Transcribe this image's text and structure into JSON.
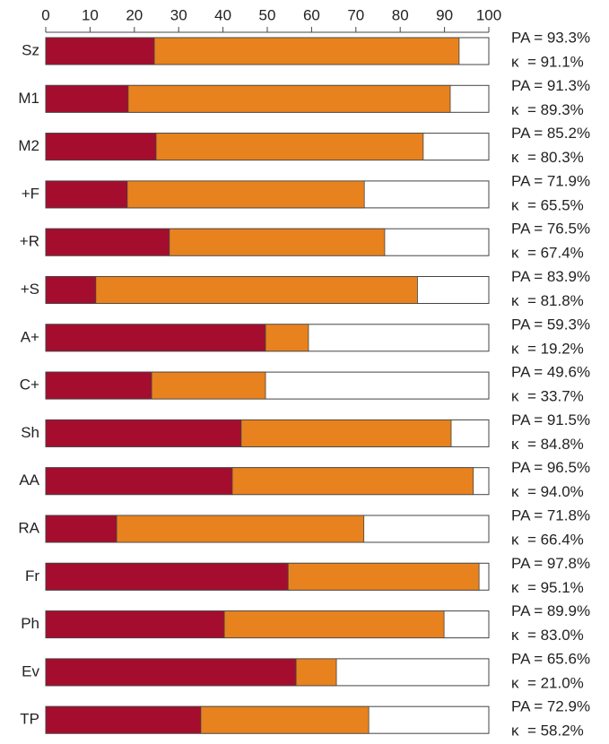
{
  "chart_data": {
    "type": "stacked-barh",
    "categories": [
      "Sz",
      "M1",
      "M2",
      "+F",
      "+R",
      "+S",
      "A+",
      "C+",
      "Sh",
      "AA",
      "RA",
      "Fr",
      "Ph",
      "Ev",
      "TP"
    ],
    "series": [
      {
        "color": "#a50d2e",
        "values": [
          24.5,
          18.6,
          24.9,
          18.4,
          27.9,
          11.3,
          49.6,
          23.9,
          44.1,
          42.1,
          16.0,
          54.7,
          40.3,
          56.5,
          35.0
        ]
      },
      {
        "color": "#e8821e",
        "values": [
          68.8,
          72.7,
          60.3,
          53.5,
          48.6,
          72.6,
          9.7,
          25.7,
          47.4,
          54.4,
          55.8,
          43.1,
          49.6,
          9.1,
          37.9
        ]
      }
    ],
    "xlim": [
      0,
      100
    ],
    "xticks": [
      0,
      10,
      20,
      30,
      40,
      50,
      60,
      70,
      80,
      90,
      100
    ],
    "annotations": [
      [
        "PA = 93.3%",
        "κ  = 91.1%"
      ],
      [
        "PA = 91.3%",
        "κ  = 89.3%"
      ],
      [
        "PA = 85.2%",
        "κ  = 80.3%"
      ],
      [
        "PA = 71.9%",
        "κ  = 65.5%"
      ],
      [
        "PA = 76.5%",
        "κ  = 67.4%"
      ],
      [
        "PA = 83.9%",
        "κ  = 81.8%"
      ],
      [
        "PA = 59.3%",
        "κ  = 19.2%"
      ],
      [
        "PA = 49.6%",
        "κ  = 33.7%"
      ],
      [
        "PA = 91.5%",
        "κ  = 84.8%"
      ],
      [
        "PA = 96.5%",
        "κ  = 94.0%"
      ],
      [
        "PA = 71.8%",
        "κ  = 66.4%"
      ],
      [
        "PA = 97.8%",
        "κ  = 95.1%"
      ],
      [
        "PA = 89.9%",
        "κ  = 83.0%"
      ],
      [
        "PA = 65.6%",
        "κ  = 21.0%"
      ],
      [
        "PA = 72.9%",
        "κ  = 58.2%"
      ]
    ]
  }
}
